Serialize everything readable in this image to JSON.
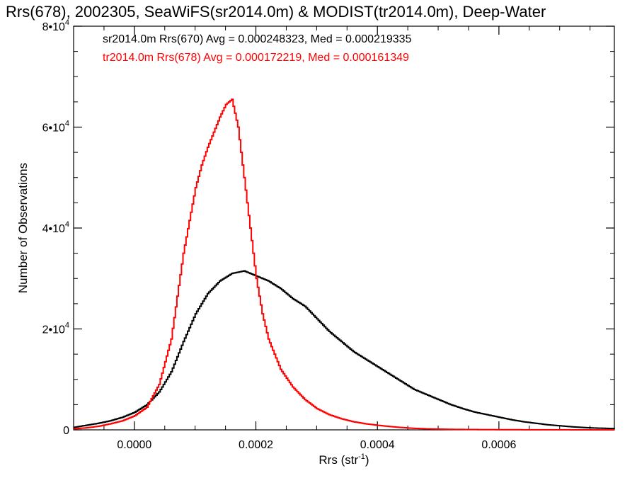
{
  "chart_data": {
    "type": "line",
    "title": "Rrs(678), 2002305, SeaWiFS(sr2014.0m) & MODIST(tr2014.0m), Deep-Water",
    "xlabel_main": "Rrs (str",
    "xlabel_exp": "-1",
    "xlabel_close": ")",
    "ylabel": "Number of Observations",
    "xlim": [
      -0.0001,
      0.00079
    ],
    "ylim": [
      0,
      80000
    ],
    "x_ticks": [
      {
        "value": 0.0,
        "label": "0.0000"
      },
      {
        "value": 0.0002,
        "label": "0.0002"
      },
      {
        "value": 0.0004,
        "label": "0.0004"
      },
      {
        "value": 0.0006,
        "label": "0.0006"
      }
    ],
    "y_ticks": [
      {
        "value": 0,
        "label": "0",
        "exp": ""
      },
      {
        "value": 20000,
        "label": "2•10",
        "exp": "4"
      },
      {
        "value": 40000,
        "label": "4•10",
        "exp": "4"
      },
      {
        "value": 60000,
        "label": "6•10",
        "exp": "4"
      },
      {
        "value": 80000,
        "label": "8•10",
        "exp": "4"
      }
    ],
    "series": [
      {
        "name": "sr2014.0m Rrs(670) Avg = 0.000248323, Med = 0.000219335",
        "color": "#000000",
        "x": [
          -0.0001,
          -8e-05,
          -6e-05,
          -4e-05,
          -2e-05,
          0.0,
          2e-05,
          4e-05,
          6e-05,
          8e-05,
          0.0001,
          0.00012,
          0.00014,
          0.00016,
          0.00018,
          0.0002,
          0.00022,
          0.00024,
          0.00026,
          0.00028,
          0.0003,
          0.00032,
          0.00034,
          0.00036,
          0.00038,
          0.0004,
          0.00042,
          0.00044,
          0.00046,
          0.00048,
          0.0005,
          0.00052,
          0.00054,
          0.00056,
          0.00058,
          0.0006,
          0.00062,
          0.00064,
          0.00066,
          0.00068,
          0.0007,
          0.00072,
          0.00074,
          0.00076,
          0.00079
        ],
        "values": [
          500,
          900,
          1300,
          1800,
          2500,
          3500,
          5000,
          7500,
          11500,
          17500,
          23000,
          27000,
          29500,
          31000,
          31500,
          30500,
          29500,
          28000,
          26000,
          24500,
          22000,
          19500,
          17500,
          15500,
          14000,
          12500,
          11000,
          9500,
          8000,
          7000,
          6000,
          5000,
          4200,
          3500,
          3000,
          2500,
          2000,
          1600,
          1300,
          1000,
          800,
          600,
          450,
          350,
          250
        ]
      },
      {
        "name": "tr2014.0m Rrs(678) Avg = 0.000172219, Med = 0.000161349",
        "color": "#ff0000",
        "x": [
          -0.0001,
          -8e-05,
          -6e-05,
          -4e-05,
          -2e-05,
          0.0,
          2e-05,
          4e-05,
          6e-05,
          8e-05,
          0.0001,
          0.00011,
          0.00012,
          0.00013,
          0.00014,
          0.00015,
          0.00016,
          0.00017,
          0.00018,
          0.00019,
          0.0002,
          0.00021,
          0.00022,
          0.00024,
          0.00026,
          0.00028,
          0.0003,
          0.00032,
          0.00034,
          0.00036,
          0.00038,
          0.0004,
          0.00042,
          0.00044,
          0.00046,
          0.00048,
          0.0005,
          0.00052,
          0.00055,
          0.0006,
          0.00065,
          0.0007,
          0.00079
        ],
        "values": [
          200,
          400,
          700,
          1200,
          1800,
          2800,
          4500,
          9000,
          18000,
          35000,
          48000,
          52500,
          56000,
          59000,
          62000,
          64500,
          65500,
          60000,
          50000,
          40000,
          30000,
          23000,
          18000,
          12000,
          8500,
          6000,
          4200,
          3000,
          2200,
          1600,
          1200,
          900,
          650,
          450,
          300,
          200,
          150,
          100,
          70,
          40,
          20,
          10,
          5
        ]
      }
    ]
  }
}
